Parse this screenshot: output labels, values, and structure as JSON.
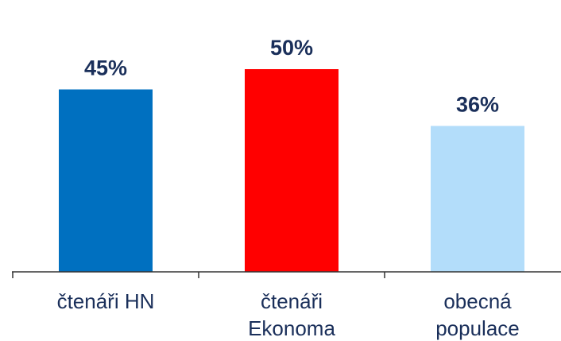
{
  "chart_data": {
    "type": "bar",
    "categories": [
      [
        "čtenáři HN"
      ],
      [
        "čtenáři",
        "Ekonoma"
      ],
      [
        "obecná",
        "populace"
      ]
    ],
    "values": [
      45,
      50,
      36
    ],
    "value_labels": [
      "45%",
      "50%",
      "36%"
    ],
    "colors": [
      "#0070c0",
      "#ff0000",
      "#b3ddfa"
    ],
    "ylim": [
      0,
      55
    ],
    "grid": false,
    "title": "",
    "xlabel": "",
    "ylabel": ""
  }
}
